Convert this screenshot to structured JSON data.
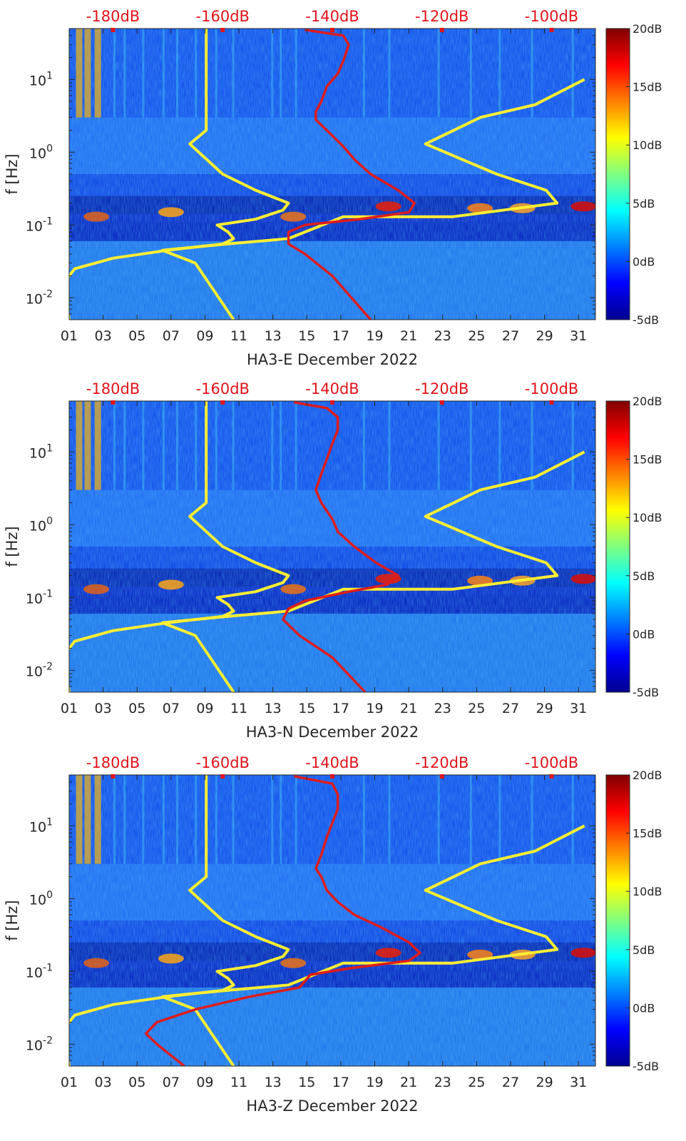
{
  "colors": {
    "reference_curve": "#ffee33",
    "noise_curve": "#dd1c1c",
    "top_axis": "#e0141b",
    "axis": "#262626",
    "colormap": [
      "#00008f",
      "#0000ff",
      "#0080ff",
      "#00ffff",
      "#80ff80",
      "#ffff00",
      "#ff8000",
      "#ff0000",
      "#800000"
    ]
  },
  "chart_data": [
    {
      "type": "heatmap",
      "xlabel": "HA3-E December 2022",
      "ylabel": "f [Hz]",
      "xticks": [
        "01",
        "03",
        "05",
        "07",
        "09",
        "11",
        "13",
        "15",
        "17",
        "19",
        "21",
        "23",
        "25",
        "27",
        "29",
        "31"
      ],
      "xlim": [
        1,
        32
      ],
      "ylim_hz": [
        0.005,
        50
      ],
      "yscale": "log",
      "yticks": [
        {
          "label": "10",
          "exp": "-2",
          "value": 0.01
        },
        {
          "label": "10",
          "exp": "-1",
          "value": 0.1
        },
        {
          "label": "10",
          "exp": "0",
          "value": 1
        },
        {
          "label": "10",
          "exp": "1",
          "value": 10
        }
      ],
      "top_axis_labels": [
        "-180dB",
        "-160dB",
        "-140dB",
        "-120dB",
        "-100dB"
      ],
      "top_axis_range_db": [
        -188,
        -92
      ],
      "colorbar": {
        "labels": [
          "20dB",
          "15dB",
          "10dB",
          "5dB",
          "0dB",
          "-5dB"
        ],
        "range_db": [
          -5,
          20
        ]
      },
      "series": [
        {
          "role": "reference-curves",
          "curves": [
            {
              "points_db_hz": [
                [
                  -188,
                  0.005
                ],
                [
                  -189,
                  0.016
                ],
                [
                  -187,
                  0.025
                ],
                [
                  -180,
                  0.035
                ],
                [
                  -170,
                  0.045
                ],
                [
                  -160,
                  0.055
                ],
                [
                  -158,
                  0.065
                ],
                [
                  -159,
                  0.08
                ],
                [
                  -161,
                  0.1
                ],
                [
                  -154,
                  0.12
                ],
                [
                  -149,
                  0.16
                ],
                [
                  -148,
                  0.2
                ],
                [
                  -154,
                  0.3
                ],
                [
                  -160,
                  0.5
                ],
                [
                  -166,
                  1.3
                ],
                [
                  -163,
                  2.0
                ],
                [
                  -163,
                  30
                ],
                [
                  -163,
                  50
                ]
              ]
            },
            {
              "points_db_hz": [
                [
                  -158,
                  0.005
                ],
                [
                  -165,
                  0.03
                ],
                [
                  -171,
                  0.045
                ],
                [
                  -159,
                  0.055
                ],
                [
                  -148,
                  0.065
                ],
                [
                  -138,
                  0.13
                ],
                [
                  -118,
                  0.13
                ],
                [
                  -99,
                  0.2
                ],
                [
                  -101,
                  0.3
                ],
                [
                  -110,
                  0.5
                ],
                [
                  -123,
                  1.3
                ],
                [
                  -113,
                  3.0
                ],
                [
                  -103,
                  4.5
                ],
                [
                  -94,
                  10
                ]
              ]
            }
          ]
        },
        {
          "role": "noise-curve",
          "points_db_hz": [
            [
              -133,
              0.005
            ],
            [
              -140,
              0.02
            ],
            [
              -145,
              0.04
            ],
            [
              -148,
              0.055
            ],
            [
              -148,
              0.08
            ],
            [
              -145,
              0.1
            ],
            [
              -135,
              0.12
            ],
            [
              -126,
              0.15
            ],
            [
              -125,
              0.2
            ],
            [
              -128,
              0.3
            ],
            [
              -133,
              0.5
            ],
            [
              -136,
              0.8
            ],
            [
              -138,
              1.2
            ],
            [
              -141,
              2.0
            ],
            [
              -143,
              2.8
            ],
            [
              -143,
              3.6
            ],
            [
              -142,
              5
            ],
            [
              -141,
              8
            ],
            [
              -139,
              12
            ],
            [
              -138,
              18
            ],
            [
              -137,
              30
            ],
            [
              -138,
              40
            ],
            [
              -145,
              48
            ]
          ]
        }
      ]
    },
    {
      "type": "heatmap",
      "xlabel": "HA3-N December 2022",
      "ylabel": "f [Hz]",
      "xticks": [
        "01",
        "03",
        "05",
        "07",
        "09",
        "11",
        "13",
        "15",
        "17",
        "19",
        "21",
        "23",
        "25",
        "27",
        "29",
        "31"
      ],
      "xlim": [
        1,
        32
      ],
      "ylim_hz": [
        0.005,
        50
      ],
      "yscale": "log",
      "yticks": [
        {
          "label": "10",
          "exp": "-2",
          "value": 0.01
        },
        {
          "label": "10",
          "exp": "-1",
          "value": 0.1
        },
        {
          "label": "10",
          "exp": "0",
          "value": 1
        },
        {
          "label": "10",
          "exp": "1",
          "value": 10
        }
      ],
      "top_axis_labels": [
        "-180dB",
        "-160dB",
        "-140dB",
        "-120dB",
        "-100dB"
      ],
      "top_axis_range_db": [
        -188,
        -92
      ],
      "colorbar": {
        "labels": [
          "20dB",
          "15dB",
          "10dB",
          "5dB",
          "0dB",
          "-5dB"
        ],
        "range_db": [
          -5,
          20
        ]
      },
      "series": [
        {
          "role": "reference-curves",
          "curves": [
            {
              "points_db_hz": [
                [
                  -188,
                  0.005
                ],
                [
                  -189,
                  0.016
                ],
                [
                  -187,
                  0.025
                ],
                [
                  -180,
                  0.035
                ],
                [
                  -170,
                  0.045
                ],
                [
                  -160,
                  0.055
                ],
                [
                  -158,
                  0.065
                ],
                [
                  -159,
                  0.08
                ],
                [
                  -161,
                  0.1
                ],
                [
                  -154,
                  0.12
                ],
                [
                  -149,
                  0.16
                ],
                [
                  -148,
                  0.2
                ],
                [
                  -154,
                  0.3
                ],
                [
                  -160,
                  0.5
                ],
                [
                  -166,
                  1.3
                ],
                [
                  -163,
                  2.0
                ],
                [
                  -163,
                  30
                ],
                [
                  -163,
                  50
                ]
              ]
            },
            {
              "points_db_hz": [
                [
                  -158,
                  0.005
                ],
                [
                  -165,
                  0.03
                ],
                [
                  -171,
                  0.045
                ],
                [
                  -159,
                  0.055
                ],
                [
                  -148,
                  0.065
                ],
                [
                  -138,
                  0.13
                ],
                [
                  -118,
                  0.13
                ],
                [
                  -99,
                  0.2
                ],
                [
                  -101,
                  0.3
                ],
                [
                  -110,
                  0.5
                ],
                [
                  -123,
                  1.3
                ],
                [
                  -113,
                  3.0
                ],
                [
                  -103,
                  4.5
                ],
                [
                  -94,
                  10
                ]
              ]
            }
          ]
        },
        {
          "role": "noise-curve",
          "points_db_hz": [
            [
              -134,
              0.005
            ],
            [
              -140,
              0.015
            ],
            [
              -146,
              0.03
            ],
            [
              -149,
              0.05
            ],
            [
              -148,
              0.07
            ],
            [
              -145,
              0.09
            ],
            [
              -137,
              0.12
            ],
            [
              -130,
              0.15
            ],
            [
              -128,
              0.2
            ],
            [
              -132,
              0.3
            ],
            [
              -136,
              0.5
            ],
            [
              -139,
              0.8
            ],
            [
              -140,
              1.2
            ],
            [
              -142,
              2.0
            ],
            [
              -143,
              3
            ],
            [
              -142,
              5
            ],
            [
              -141,
              8
            ],
            [
              -140,
              13
            ],
            [
              -139,
              20
            ],
            [
              -139,
              30
            ],
            [
              -141,
              40
            ],
            [
              -147,
              48
            ]
          ]
        }
      ]
    },
    {
      "type": "heatmap",
      "xlabel": "HA3-Z December 2022",
      "ylabel": "f [Hz]",
      "xticks": [
        "01",
        "03",
        "05",
        "07",
        "09",
        "11",
        "13",
        "15",
        "17",
        "19",
        "21",
        "23",
        "25",
        "27",
        "29",
        "31"
      ],
      "xlim": [
        1,
        32
      ],
      "ylim_hz": [
        0.005,
        50
      ],
      "yscale": "log",
      "yticks": [
        {
          "label": "10",
          "exp": "-2",
          "value": 0.01
        },
        {
          "label": "10",
          "exp": "-1",
          "value": 0.1
        },
        {
          "label": "10",
          "exp": "0",
          "value": 1
        },
        {
          "label": "10",
          "exp": "1",
          "value": 10
        }
      ],
      "top_axis_labels": [
        "-180dB",
        "-160dB",
        "-140dB",
        "-120dB",
        "-100dB"
      ],
      "top_axis_range_db": [
        -188,
        -92
      ],
      "colorbar": {
        "labels": [
          "20dB",
          "15dB",
          "10dB",
          "5dB",
          "0dB",
          "-5dB"
        ],
        "range_db": [
          -5,
          20
        ]
      },
      "series": [
        {
          "role": "reference-curves",
          "curves": [
            {
              "points_db_hz": [
                [
                  -188,
                  0.005
                ],
                [
                  -189,
                  0.016
                ],
                [
                  -187,
                  0.025
                ],
                [
                  -180,
                  0.035
                ],
                [
                  -170,
                  0.045
                ],
                [
                  -160,
                  0.055
                ],
                [
                  -158,
                  0.065
                ],
                [
                  -159,
                  0.08
                ],
                [
                  -161,
                  0.1
                ],
                [
                  -154,
                  0.12
                ],
                [
                  -149,
                  0.16
                ],
                [
                  -148,
                  0.2
                ],
                [
                  -154,
                  0.3
                ],
                [
                  -160,
                  0.5
                ],
                [
                  -166,
                  1.3
                ],
                [
                  -163,
                  2.0
                ],
                [
                  -163,
                  30
                ],
                [
                  -163,
                  50
                ]
              ]
            },
            {
              "points_db_hz": [
                [
                  -158,
                  0.005
                ],
                [
                  -165,
                  0.03
                ],
                [
                  -171,
                  0.045
                ],
                [
                  -159,
                  0.055
                ],
                [
                  -148,
                  0.065
                ],
                [
                  -138,
                  0.13
                ],
                [
                  -118,
                  0.13
                ],
                [
                  -99,
                  0.2
                ],
                [
                  -101,
                  0.3
                ],
                [
                  -110,
                  0.5
                ],
                [
                  -123,
                  1.3
                ],
                [
                  -113,
                  3.0
                ],
                [
                  -103,
                  4.5
                ],
                [
                  -94,
                  10
                ]
              ]
            }
          ]
        },
        {
          "role": "noise-curve",
          "points_db_hz": [
            [
              -167,
              0.005
            ],
            [
              -172,
              0.01
            ],
            [
              -174,
              0.014
            ],
            [
              -172,
              0.02
            ],
            [
              -165,
              0.03
            ],
            [
              -155,
              0.045
            ],
            [
              -146,
              0.06
            ],
            [
              -144,
              0.09
            ],
            [
              -137,
              0.11
            ],
            [
              -126,
              0.14
            ],
            [
              -124,
              0.18
            ],
            [
              -126,
              0.25
            ],
            [
              -131,
              0.4
            ],
            [
              -136,
              0.6
            ],
            [
              -139,
              0.9
            ],
            [
              -141,
              1.3
            ],
            [
              -142,
              2.0
            ],
            [
              -143,
              2.6
            ],
            [
              -142,
              4
            ],
            [
              -141,
              7
            ],
            [
              -140,
              11
            ],
            [
              -139,
              17
            ],
            [
              -139,
              27
            ],
            [
              -140,
              38
            ],
            [
              -147,
              48
            ]
          ]
        }
      ]
    }
  ]
}
